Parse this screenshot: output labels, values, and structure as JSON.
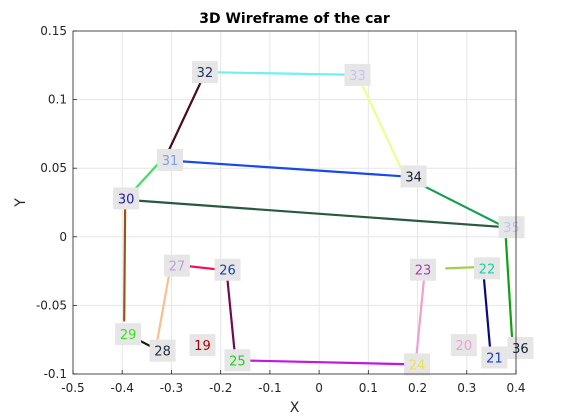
{
  "chart_data": {
    "type": "line",
    "title": "3D Wireframe of the car",
    "xlabel": "X",
    "ylabel": "Y",
    "xlim": [
      -0.5,
      0.4
    ],
    "ylim": [
      -0.1,
      0.15
    ],
    "xticks": [
      "-0.5",
      "-0.4",
      "-0.3",
      "-0.2",
      "-0.1",
      "0",
      "0.1",
      "0.2",
      "0.3",
      "0.4"
    ],
    "yticks": [
      "-0.1",
      "-0.05",
      "0",
      "0.05",
      "0.1",
      "0.15"
    ],
    "grid": true,
    "points": [
      {
        "id": "19",
        "x": -0.237,
        "y": -0.079,
        "color": "#b00000"
      },
      {
        "id": "20",
        "x": 0.294,
        "y": -0.079,
        "color": "#f0a0d0"
      },
      {
        "id": "21",
        "x": 0.356,
        "y": -0.088,
        "color": "#1a3ad0"
      },
      {
        "id": "22",
        "x": 0.341,
        "y": -0.023,
        "color": "#20d0a0"
      },
      {
        "id": "23",
        "x": 0.211,
        "y": -0.024,
        "color": "#b03ab0"
      },
      {
        "id": "24",
        "x": 0.199,
        "y": -0.093,
        "color": "#e8e060"
      },
      {
        "id": "25",
        "x": -0.166,
        "y": -0.09,
        "color": "#20d020"
      },
      {
        "id": "26",
        "x": -0.186,
        "y": -0.024,
        "color": "#2040a0"
      },
      {
        "id": "27",
        "x": -0.289,
        "y": -0.021,
        "color": "#c0a0e0"
      },
      {
        "id": "28",
        "x": -0.318,
        "y": -0.083,
        "color": "#203040"
      },
      {
        "id": "29",
        "x": -0.388,
        "y": -0.071,
        "color": "#40e020"
      },
      {
        "id": "30",
        "x": -0.392,
        "y": 0.028,
        "color": "#2020a0"
      },
      {
        "id": "31",
        "x": -0.303,
        "y": 0.056,
        "color": "#80a0e0"
      },
      {
        "id": "32",
        "x": -0.232,
        "y": 0.12,
        "color": "#203060"
      },
      {
        "id": "33",
        "x": 0.078,
        "y": 0.118,
        "color": "#c0c8f0"
      },
      {
        "id": "34",
        "x": 0.192,
        "y": 0.044,
        "color": "#102030"
      },
      {
        "id": "35",
        "x": 0.391,
        "y": 0.007,
        "color": "#c0c8f0"
      },
      {
        "id": "36",
        "x": 0.409,
        "y": -0.081,
        "color": "#102030"
      }
    ],
    "edges": [
      {
        "x": [
          -0.231,
          -0.308
        ],
        "y": [
          0.12,
          0.061
        ],
        "color": "#4a0a1a"
      },
      {
        "x": [
          -0.231,
          0.078
        ],
        "y": [
          0.12,
          0.118
        ],
        "color": "#70f0f0"
      },
      {
        "x": [
          0.078,
          0.174
        ],
        "y": [
          0.118,
          0.044
        ],
        "color": "#eefe8e"
      },
      {
        "x": [
          0.174,
          0.378
        ],
        "y": [
          0.044,
          0.007
        ],
        "color": "#10a050"
      },
      {
        "x": [
          0.378,
          0.392
        ],
        "y": [
          0.007,
          -0.074
        ],
        "color": "#10a010"
      },
      {
        "x": [
          -0.32,
          0.174
        ],
        "y": [
          0.056,
          0.044
        ],
        "color": "#1848ee"
      },
      {
        "x": [
          -0.32,
          -0.394
        ],
        "y": [
          0.056,
          0.027
        ],
        "color": "#40e060"
      },
      {
        "x": [
          -0.394,
          0.378
        ],
        "y": [
          0.027,
          0.007
        ],
        "color": "#285a40"
      },
      {
        "x": [
          -0.394,
          -0.396
        ],
        "y": [
          0.027,
          -0.061
        ],
        "color": "#a05010"
      },
      {
        "x": [
          -0.4,
          -0.336
        ],
        "y": [
          -0.069,
          -0.081
        ],
        "color": "#102010"
      },
      {
        "x": [
          -0.333,
          -0.301
        ],
        "y": [
          -0.084,
          -0.02
        ],
        "color": "#f8c090"
      },
      {
        "x": [
          -0.301,
          -0.2
        ],
        "y": [
          -0.02,
          -0.024
        ],
        "color": "#e81860"
      },
      {
        "x": [
          -0.186,
          -0.17
        ],
        "y": [
          -0.032,
          -0.09
        ],
        "color": "#700a50"
      },
      {
        "x": [
          -0.17,
          0.196
        ],
        "y": [
          -0.09,
          -0.093
        ],
        "color": "#c018e0"
      },
      {
        "x": [
          0.196,
          0.213
        ],
        "y": [
          -0.093,
          -0.031
        ],
        "color": "#f0a0d0"
      },
      {
        "x": [
          0.258,
          0.326
        ],
        "y": [
          -0.023,
          -0.022
        ],
        "color": "#a0d050"
      },
      {
        "x": [
          0.335,
          0.349
        ],
        "y": [
          -0.031,
          -0.088
        ],
        "color": "#0a0a80"
      }
    ]
  }
}
